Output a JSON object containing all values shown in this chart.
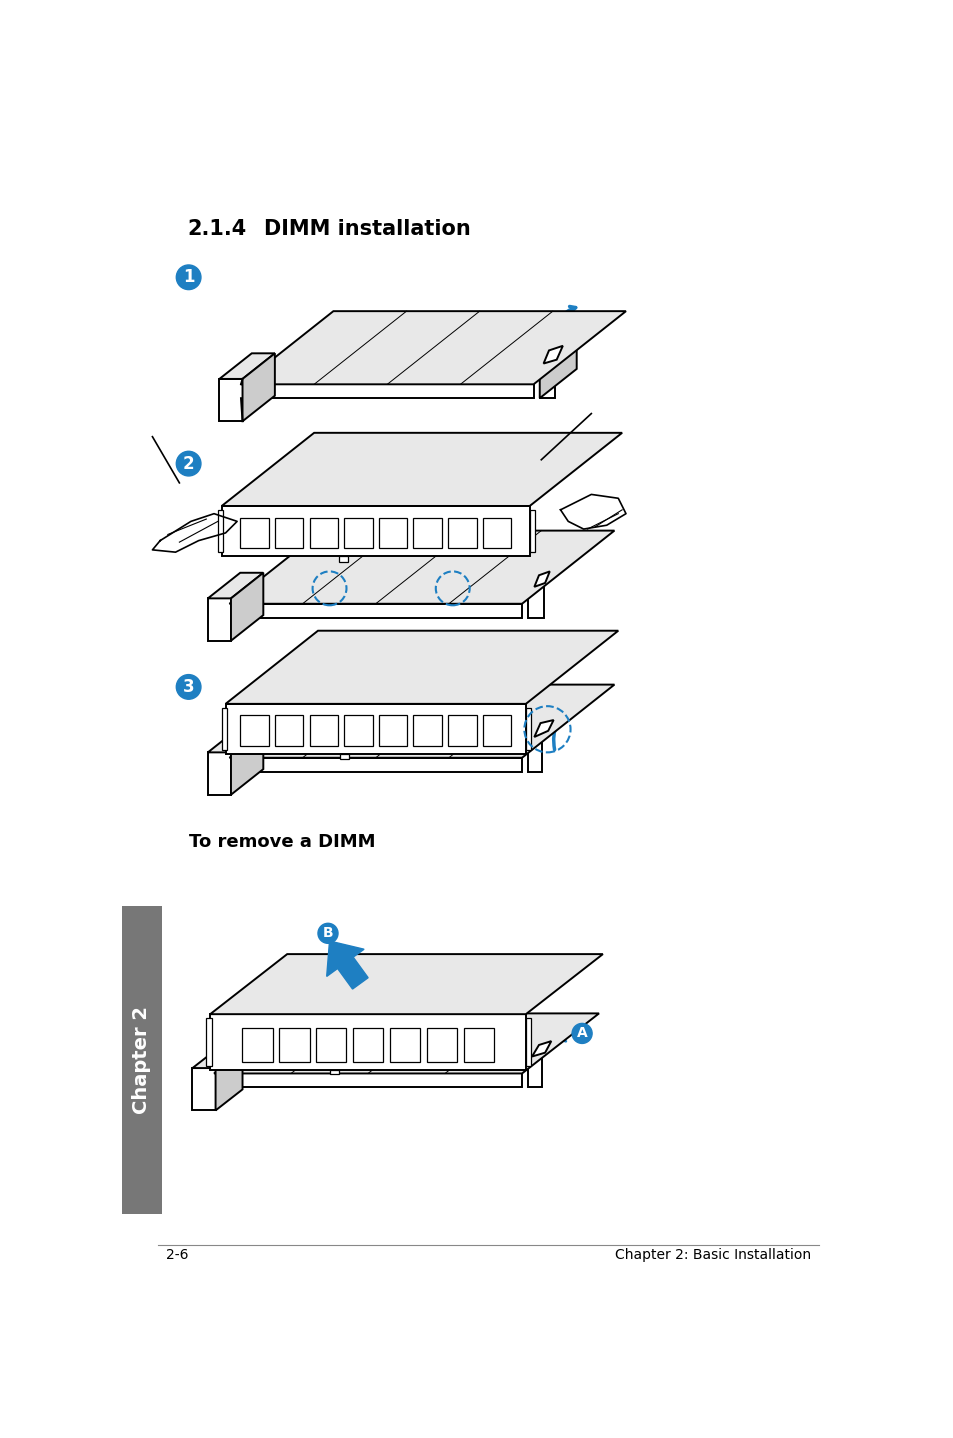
{
  "title_num": "2.1.4",
  "title_text": "DIMM installation",
  "footer_left": "2-6",
  "footer_right": "Chapter 2: Basic Installation",
  "remove_dimm_label": "To remove a DIMM",
  "chapter_label": "Chapter 2",
  "bg_color": "#ffffff",
  "text_color": "#000000",
  "blue_color": "#1e7fc2",
  "gray_color": "#888888",
  "light_gray": "#e8e8e8",
  "mid_gray": "#cccccc",
  "dark_gray": "#aaaaaa"
}
